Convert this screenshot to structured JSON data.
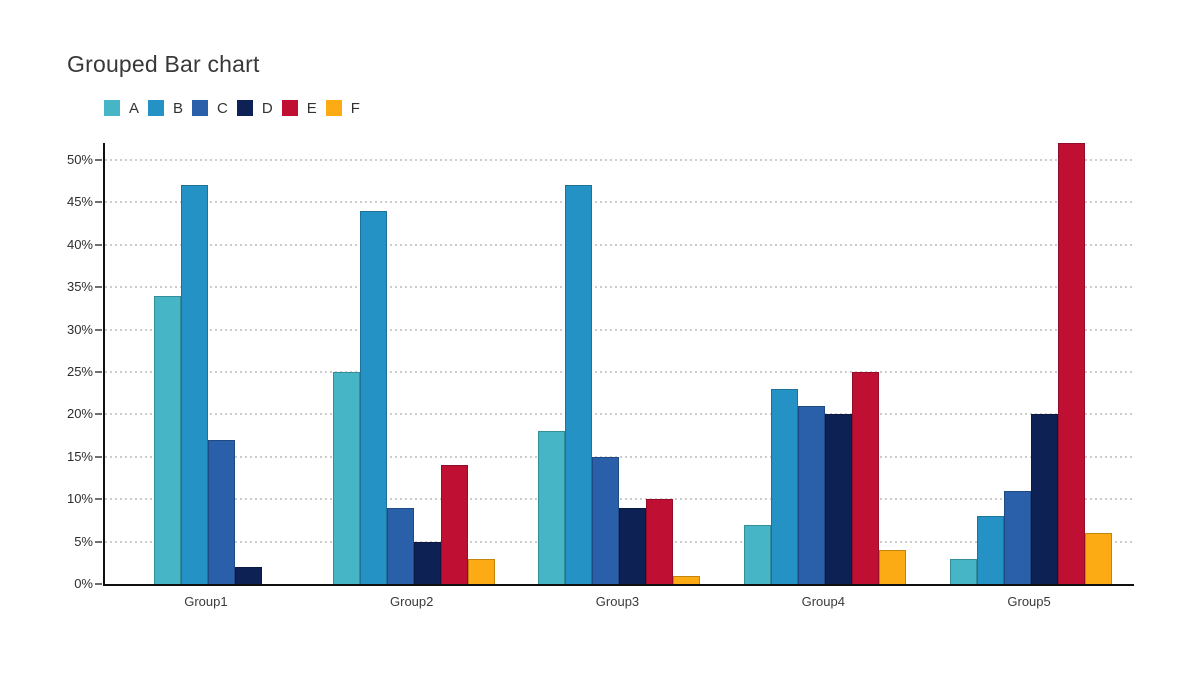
{
  "chart_data": {
    "type": "bar",
    "title": "Grouped Bar chart",
    "categories": [
      "Group1",
      "Group2",
      "Group3",
      "Group4",
      "Group5"
    ],
    "series": [
      {
        "name": "A",
        "color": "#46b5c6",
        "values": [
          34,
          25,
          18,
          7,
          3
        ]
      },
      {
        "name": "B",
        "color": "#2492c4",
        "values": [
          47,
          44,
          47,
          23,
          8
        ]
      },
      {
        "name": "C",
        "color": "#2a5fa9",
        "values": [
          17,
          9,
          15,
          21,
          11
        ]
      },
      {
        "name": "D",
        "color": "#0e2155",
        "values": [
          2,
          5,
          9,
          20,
          20
        ]
      },
      {
        "name": "E",
        "color": "#bf1034",
        "values": [
          0,
          14,
          10,
          25,
          52
        ]
      },
      {
        "name": "F",
        "color": "#fcab14",
        "values": [
          0,
          3,
          1,
          4,
          6
        ]
      }
    ],
    "ylabel": "",
    "xlabel": "",
    "y_ticks": [
      "0%",
      "5%",
      "10%",
      "15%",
      "20%",
      "25%",
      "30%",
      "35%",
      "40%",
      "45%",
      "50%"
    ],
    "y_tick_step": 5,
    "ylim": [
      0,
      52
    ],
    "grid": "horizontal-dotted",
    "gridline_color": "#cccccc",
    "axis_color": "#101010",
    "legend_position": "top-left"
  }
}
